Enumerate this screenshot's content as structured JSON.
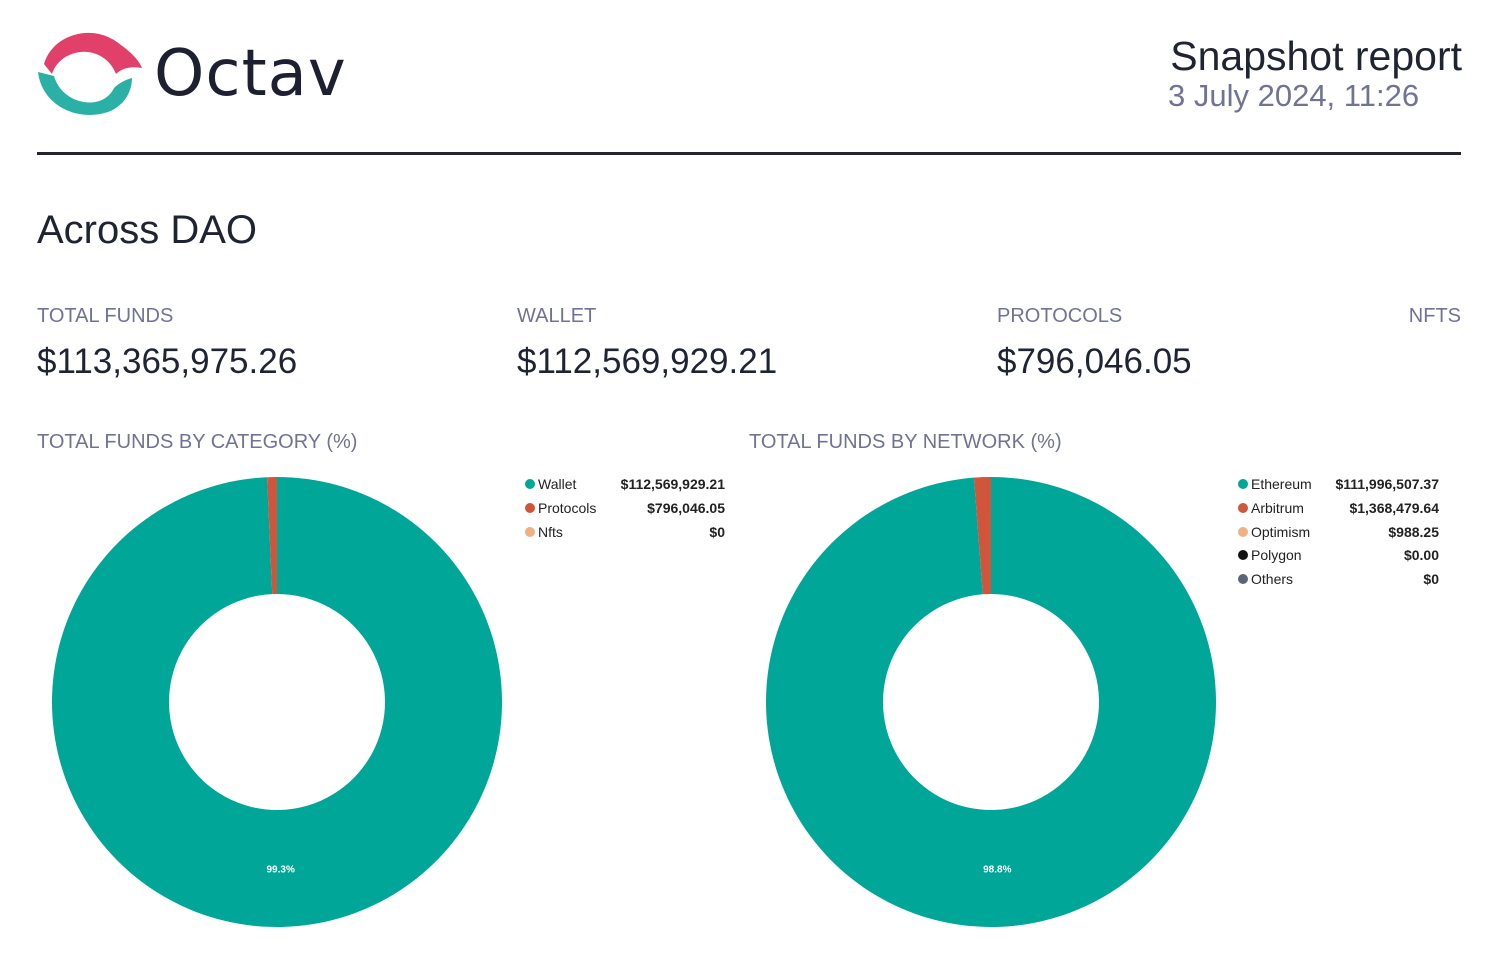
{
  "brand": {
    "name": "Octav",
    "logo_icon": "octav-logo-icon"
  },
  "report": {
    "title": "Snapshot report",
    "date": "3 July 2024, 11:26"
  },
  "entity": {
    "name": "Across DAO"
  },
  "stats": [
    {
      "label": "TOTAL FUNDS",
      "value": "$113,365,975.26"
    },
    {
      "label": "WALLET",
      "value": "$112,569,929.21"
    },
    {
      "label": "PROTOCOLS",
      "value": "$796,046.05"
    },
    {
      "label": "NFTS",
      "value": ""
    }
  ],
  "colors": {
    "teal": "#00a697",
    "red": "#d0553a",
    "peach": "#f0b083",
    "black": "#111111",
    "slate": "#5d6479"
  },
  "chart_data": [
    {
      "type": "pie",
      "variant": "donut",
      "title": "TOTAL FUNDS BY CATEGORY (%)",
      "categories": [
        "Wallet",
        "Protocols",
        "Nfts"
      ],
      "value_labels": [
        "$112,569,929.21",
        "$796,046.05",
        "$0"
      ],
      "values": [
        112569929.21,
        796046.05,
        0
      ],
      "colors": [
        "#00a697",
        "#d0553a",
        "#f0b083"
      ],
      "slice_labels": [
        "99.3%",
        "",
        ""
      ],
      "legend": "right"
    },
    {
      "type": "pie",
      "variant": "donut",
      "title": "TOTAL FUNDS BY NETWORK (%)",
      "categories": [
        "Ethereum",
        "Arbitrum",
        "Optimism",
        "Polygon",
        "Others"
      ],
      "value_labels": [
        "$111,996,507.37",
        "$1,368,479.64",
        "$988.25",
        "$0.00",
        "$0"
      ],
      "values": [
        111996507.37,
        1368479.64,
        988.25,
        0,
        0
      ],
      "colors": [
        "#00a697",
        "#d0553a",
        "#f0b083",
        "#111111",
        "#5d6479"
      ],
      "slice_labels": [
        "98.8%",
        "",
        "",
        "",
        ""
      ],
      "legend": "right"
    }
  ]
}
